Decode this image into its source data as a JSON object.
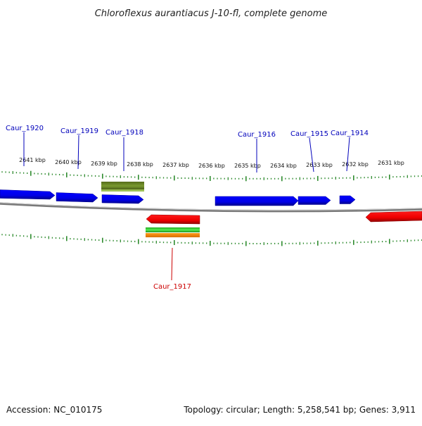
{
  "title": "Chloroflexus aurantiacus J-10-fl, complete genome",
  "footer": {
    "accession": "Accession: NC_010175",
    "summary": "Topology: circular; Length: 5,258,541 bp; Genes: 3,911"
  },
  "colors": {
    "forward_gene": "#0000ee",
    "reverse_gene": "#ee0000",
    "label_forward": "#0000bb",
    "label_reverse": "#cc0000",
    "tick": "#2e8b2e",
    "backbone": "#888888",
    "olive_feature": "#6b8e23",
    "green_feature": "#33cc33",
    "orange_feature": "#ff8800"
  },
  "scale_labels": [
    "2641 kbp",
    "2640 kbp",
    "2639 kbp",
    "2638 kbp",
    "2637 kbp",
    "2636 kbp",
    "2635 kbp",
    "2634 kbp",
    "2633 kbp",
    "2632 kbp",
    "2631 kbp"
  ],
  "genes": [
    {
      "name": "Caur_1920",
      "strand": "+"
    },
    {
      "name": "Caur_1919",
      "strand": "+"
    },
    {
      "name": "Caur_1918",
      "strand": "+"
    },
    {
      "name": "Caur_1917",
      "strand": "-"
    },
    {
      "name": "Caur_1916",
      "strand": "+"
    },
    {
      "name": "Caur_1915",
      "strand": "+"
    },
    {
      "name": "Caur_1914",
      "strand": "+"
    }
  ]
}
